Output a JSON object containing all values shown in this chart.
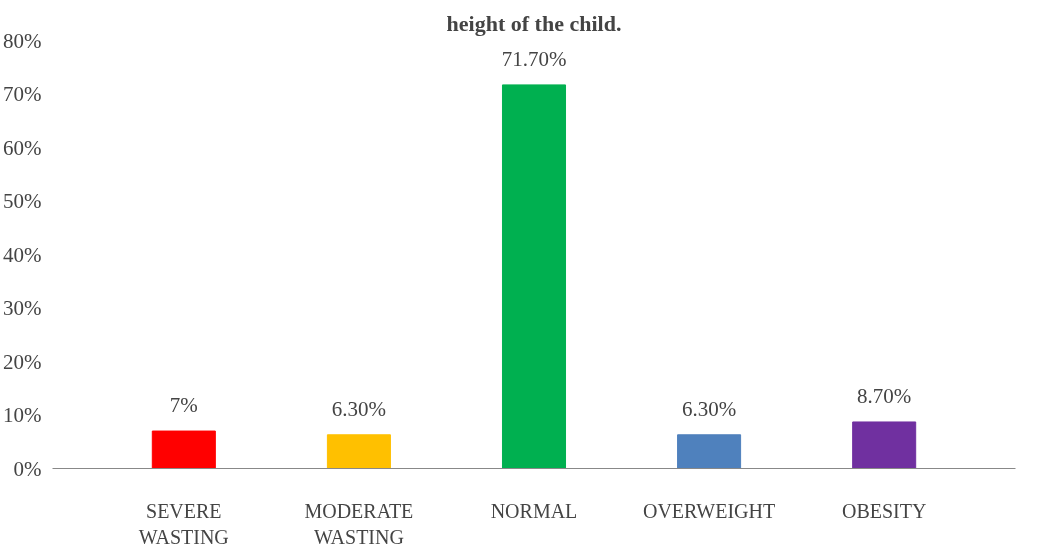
{
  "chart_data": {
    "type": "bar",
    "title": "height of the child.",
    "categories": [
      "SEVERE\nWASTING",
      "MODERATE\nWASTING",
      "NORMAL",
      "OVERWEIGHT",
      "OBESITY"
    ],
    "values": [
      7,
      6.3,
      71.7,
      6.3,
      8.7
    ],
    "colors": [
      "#ff0000",
      "#ffc000",
      "#00b050",
      "#4f81bd",
      "#7030a0"
    ],
    "value_labels": [
      "7%",
      "6.30%",
      "71.70%",
      "6.30%",
      "8.70%"
    ],
    "ylim": [
      0,
      80
    ],
    "yticks": [
      {
        "value": 0,
        "label": "0%"
      },
      {
        "value": 10,
        "label": "10%"
      },
      {
        "value": 20,
        "label": "20%"
      },
      {
        "value": 30,
        "label": "30%"
      },
      {
        "value": 40,
        "label": "40%"
      },
      {
        "value": 50,
        "label": "50%"
      },
      {
        "value": 60,
        "label": "60%"
      },
      {
        "value": 70,
        "label": "70%"
      },
      {
        "value": 80,
        "label": "80%"
      }
    ],
    "grid": false
  }
}
